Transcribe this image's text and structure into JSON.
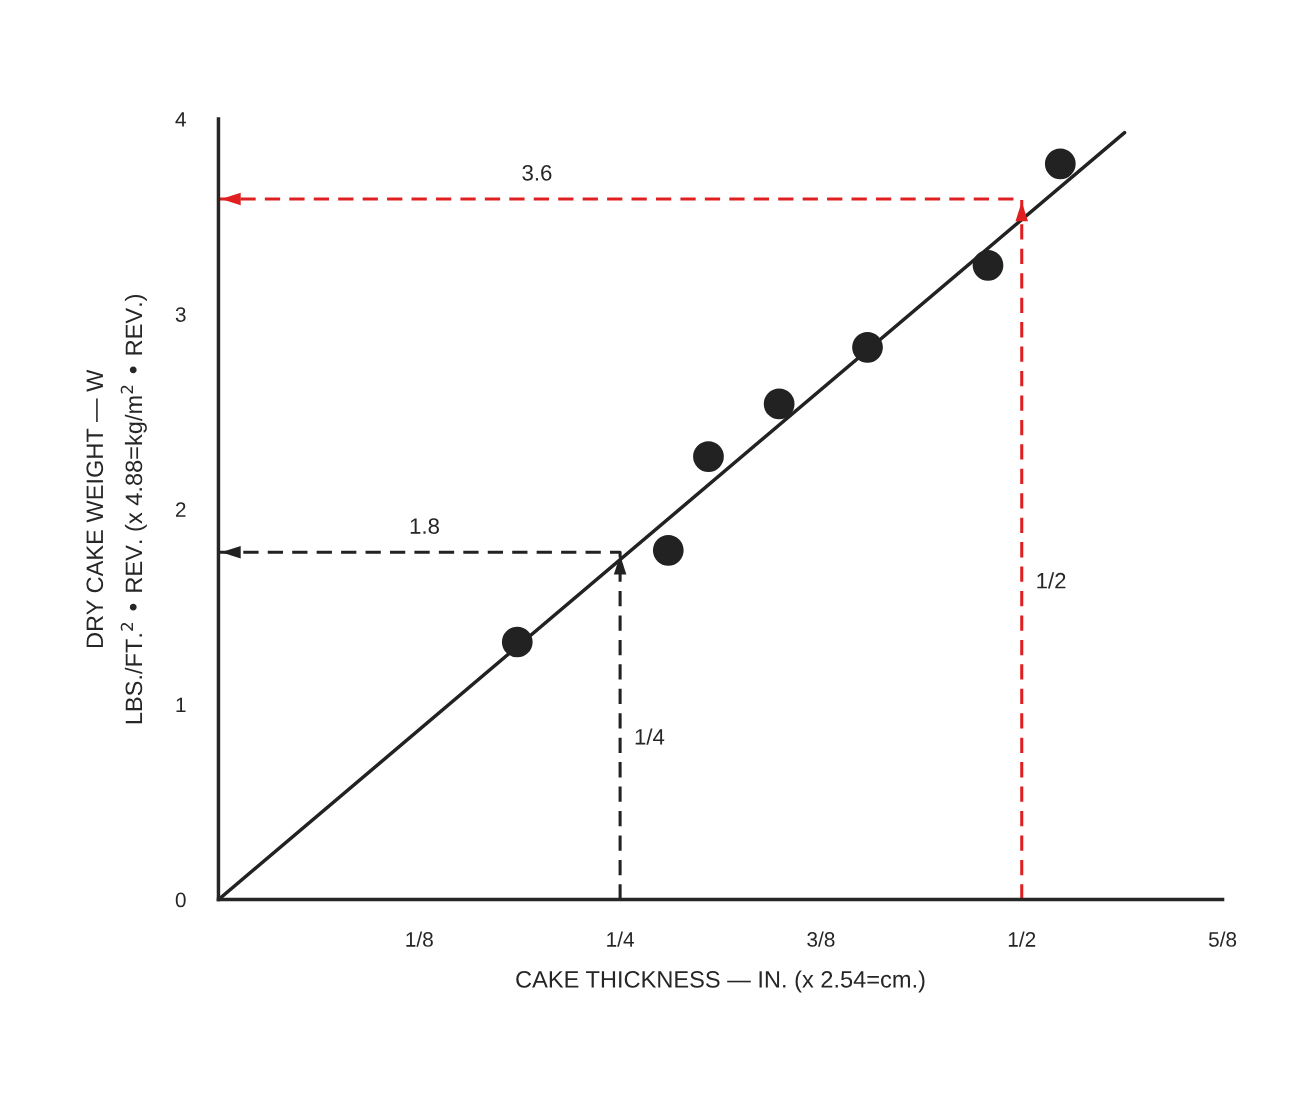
{
  "chart_data": {
    "type": "scatter",
    "xlabel": "CAKE THICKNESS — IN. (x 2.54=cm.)",
    "ylabel": "DRY CAKE WEIGHT — W\nLBS./FT.$^{2}$ • REV. (x 4.88=kg/m$^{2}$ • REV.)",
    "series": [
      {
        "color": "#222222",
        "marker": "circle",
        "x": [
          0.186,
          0.28,
          0.305,
          0.349,
          0.404,
          0.479,
          0.524
        ],
        "values": [
          1.32,
          1.79,
          2.27,
          2.54,
          2.83,
          3.25,
          3.77
        ]
      },
      {
        "type": "line",
        "color": "#222222",
        "x": [
          0,
          0.564
        ],
        "values": [
          0,
          3.93
        ]
      },
      {
        "type": "line",
        "color": "#222222",
        "line_style": "dashed",
        "x": [
          0.25,
          0.25,
          0
        ],
        "values": [
          0,
          1.78,
          1.78
        ]
      },
      {
        "type": "line",
        "color": "#e02020",
        "line_style": "dashed",
        "x": [
          0.5,
          0.5,
          0
        ],
        "values": [
          0,
          3.59,
          3.59
        ]
      }
    ],
    "annotations": [
      {
        "text": "1.8",
        "x": 0.11,
        "y": 1.78
      },
      {
        "text": "3.6",
        "x": 0.18,
        "y": 3.59
      },
      {
        "text": "1/4",
        "x": 0.25,
        "y": 0.7
      },
      {
        "text": "1/2",
        "x": 0.5,
        "y": 1.5
      }
    ],
    "xlim": [
      0,
      0.625
    ],
    "ylim": [
      0,
      4
    ],
    "xticks": [
      {
        "value": 0,
        "label": null
      },
      {
        "value": 0.125,
        "label": "1/8"
      },
      {
        "value": 0.25,
        "label": "1/4"
      },
      {
        "value": 0.375,
        "label": "3/8"
      },
      {
        "value": 0.5,
        "label": "1/2"
      },
      {
        "value": 0.625,
        "label": "5/8"
      }
    ],
    "yticks": [
      0,
      1,
      2,
      3,
      4
    ],
    "grid": false,
    "legend": false
  }
}
